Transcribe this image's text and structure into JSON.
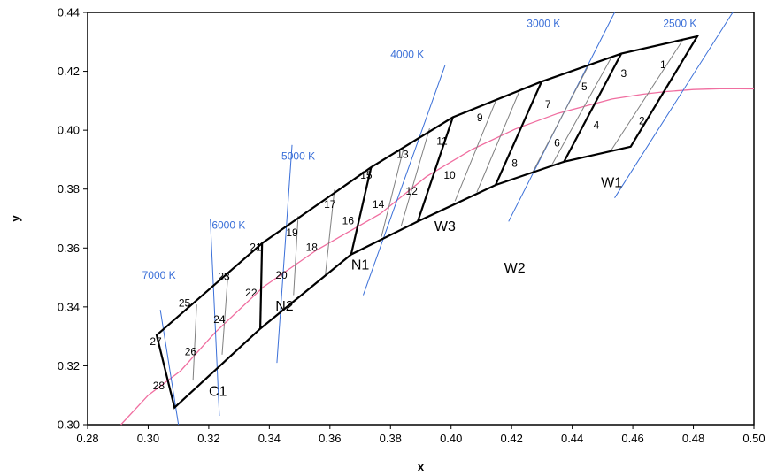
{
  "chart_data": {
    "type": "line",
    "title": "",
    "xlabel": "x",
    "ylabel": "y",
    "xlim": [
      0.28,
      0.5
    ],
    "ylim": [
      0.3,
      0.44
    ],
    "xticks": [
      "0.28",
      "0.30",
      "0.32",
      "0.34",
      "0.36",
      "0.38",
      "0.40",
      "0.42",
      "0.44",
      "0.46",
      "0.48",
      "0.50"
    ],
    "yticks": [
      "0.30",
      "0.32",
      "0.34",
      "0.36",
      "0.38",
      "0.40",
      "0.42",
      "0.44"
    ],
    "grid": false,
    "colors": {
      "planckian": "#f06ea0",
      "cct_line": "#3a6fd8",
      "cct_text": "#3a6fd8",
      "outline": "#000000",
      "bin_line": "#808080"
    },
    "planckian_locus": [
      [
        0.291,
        0.3
      ],
      [
        0.3,
        0.31
      ],
      [
        0.3107,
        0.3183
      ],
      [
        0.3221,
        0.3313
      ],
      [
        0.3379,
        0.3467
      ],
      [
        0.3555,
        0.3592
      ],
      [
        0.3766,
        0.3716
      ],
      [
        0.3918,
        0.3842
      ],
      [
        0.4068,
        0.3934
      ],
      [
        0.4212,
        0.4004
      ],
      [
        0.4352,
        0.4057
      ],
      [
        0.4532,
        0.4106
      ],
      [
        0.4633,
        0.4122
      ],
      [
        0.471,
        0.4131
      ],
      [
        0.48,
        0.4138
      ],
      [
        0.49,
        0.4141
      ],
      [
        0.5,
        0.414
      ]
    ],
    "outline_top": [
      [
        0.3028,
        0.3304
      ],
      [
        0.3376,
        0.3616
      ],
      [
        0.3736,
        0.3874
      ],
      [
        0.4006,
        0.4044
      ],
      [
        0.4299,
        0.4165
      ],
      [
        0.4562,
        0.426
      ],
      [
        0.4813,
        0.4319
      ]
    ],
    "outline_bottom": [
      [
        0.3087,
        0.3058
      ],
      [
        0.337,
        0.3326
      ],
      [
        0.367,
        0.3578
      ],
      [
        0.389,
        0.369
      ],
      [
        0.4147,
        0.3814
      ],
      [
        0.4373,
        0.3893
      ],
      [
        0.4593,
        0.3944
      ]
    ],
    "bin_lines": [
      [
        [
          0.316,
          0.3408
        ],
        [
          0.3148,
          0.315
        ]
      ],
      [
        [
          0.3263,
          0.3505
        ],
        [
          0.3244,
          0.3238
        ]
      ],
      [
        [
          0.3495,
          0.3708
        ],
        [
          0.348,
          0.344
        ]
      ],
      [
        [
          0.3615,
          0.3798
        ],
        [
          0.3585,
          0.3509
        ]
      ],
      [
        [
          0.3845,
          0.3946
        ],
        [
          0.377,
          0.3638
        ]
      ],
      [
        [
          0.3929,
          0.4006
        ],
        [
          0.3835,
          0.3674
        ]
      ],
      [
        [
          0.4147,
          0.4098
        ],
        [
          0.4013,
          0.3759
        ]
      ],
      [
        [
          0.4227,
          0.4136
        ],
        [
          0.4085,
          0.3789
        ]
      ],
      [
        [
          0.4455,
          0.4222
        ],
        [
          0.427,
          0.3858
        ]
      ],
      [
        [
          0.4528,
          0.4245
        ],
        [
          0.433,
          0.3877
        ]
      ],
      [
        [
          0.4765,
          0.4306
        ],
        [
          0.453,
          0.3934
        ]
      ]
    ],
    "group_lines": [
      [
        [
          0.3376,
          0.3616
        ],
        [
          0.337,
          0.3326
        ]
      ],
      [
        [
          0.3736,
          0.3874
        ],
        [
          0.367,
          0.3578
        ]
      ],
      [
        [
          0.4006,
          0.4044
        ],
        [
          0.389,
          0.369
        ]
      ],
      [
        [
          0.4299,
          0.4165
        ],
        [
          0.4147,
          0.3814
        ]
      ],
      [
        [
          0.4562,
          0.426
        ],
        [
          0.4373,
          0.3893
        ]
      ]
    ],
    "cct_lines": [
      {
        "label": "2500 K",
        "from": [
          0.454,
          0.377
        ],
        "to": [
          0.493,
          0.44
        ],
        "label_at": [
          0.47,
          0.435
        ]
      },
      {
        "label": "3000 K",
        "from": [
          0.419,
          0.369
        ],
        "to": [
          0.454,
          0.44
        ],
        "label_at": [
          0.425,
          0.435
        ]
      },
      {
        "label": "4000 K",
        "from": [
          0.371,
          0.344
        ],
        "to": [
          0.398,
          0.422
        ],
        "label_at": [
          0.38,
          0.4245
        ]
      },
      {
        "label": "5000 K",
        "from": [
          0.3425,
          0.321
        ],
        "to": [
          0.3475,
          0.395
        ],
        "label_at": [
          0.344,
          0.39
        ]
      },
      {
        "label": "6000 K",
        "from": [
          0.3235,
          0.303
        ],
        "to": [
          0.3205,
          0.37
        ],
        "label_at": [
          0.321,
          0.3665
        ]
      },
      {
        "label": "7000 K",
        "from": [
          0.31,
          0.3
        ],
        "to": [
          0.304,
          0.339
        ],
        "label_at": [
          0.298,
          0.3495
        ]
      }
    ],
    "bin_labels": [
      {
        "text": "1",
        "at": [
          0.47,
          0.422
        ]
      },
      {
        "text": "2",
        "at": [
          0.463,
          0.403
        ]
      },
      {
        "text": "3",
        "at": [
          0.457,
          0.419
        ]
      },
      {
        "text": "4",
        "at": [
          0.448,
          0.4015
        ]
      },
      {
        "text": "5",
        "at": [
          0.444,
          0.4145
        ]
      },
      {
        "text": "6",
        "at": [
          0.435,
          0.3955
        ]
      },
      {
        "text": "7",
        "at": [
          0.432,
          0.4085
        ]
      },
      {
        "text": "8",
        "at": [
          0.421,
          0.3885
        ]
      },
      {
        "text": "9",
        "at": [
          0.4095,
          0.404
        ]
      },
      {
        "text": "10",
        "at": [
          0.3995,
          0.3845
        ]
      },
      {
        "text": "11",
        "at": [
          0.397,
          0.396
        ]
      },
      {
        "text": "12",
        "at": [
          0.387,
          0.379
        ]
      },
      {
        "text": "13",
        "at": [
          0.384,
          0.3915
        ]
      },
      {
        "text": "14",
        "at": [
          0.376,
          0.3745
        ]
      },
      {
        "text": "15",
        "at": [
          0.372,
          0.3845
        ]
      },
      {
        "text": "16",
        "at": [
          0.366,
          0.369
        ]
      },
      {
        "text": "17",
        "at": [
          0.36,
          0.3745
        ]
      },
      {
        "text": "18",
        "at": [
          0.354,
          0.36
        ]
      },
      {
        "text": "19",
        "at": [
          0.3475,
          0.365
        ]
      },
      {
        "text": "20",
        "at": [
          0.344,
          0.3505
        ]
      },
      {
        "text": "21",
        "at": [
          0.3355,
          0.36
        ]
      },
      {
        "text": "22",
        "at": [
          0.334,
          0.3445
        ]
      },
      {
        "text": "23",
        "at": [
          0.325,
          0.35
        ]
      },
      {
        "text": "24",
        "at": [
          0.3235,
          0.3355
        ]
      },
      {
        "text": "25",
        "at": [
          0.312,
          0.341
        ]
      },
      {
        "text": "26",
        "at": [
          0.314,
          0.3245
        ]
      },
      {
        "text": "27",
        "at": [
          0.3025,
          0.328
        ]
      },
      {
        "text": "28",
        "at": [
          0.3035,
          0.313
        ]
      }
    ],
    "group_labels": [
      {
        "text": "W1",
        "at": [
          0.453,
          0.382
        ]
      },
      {
        "text": "W2",
        "at": [
          0.421,
          0.353
        ]
      },
      {
        "text": "W3",
        "at": [
          0.398,
          0.367
        ]
      },
      {
        "text": "N1",
        "at": [
          0.37,
          0.354
        ]
      },
      {
        "text": "N2",
        "at": [
          0.345,
          0.34
        ]
      },
      {
        "text": "C1",
        "at": [
          0.323,
          0.311
        ]
      }
    ]
  }
}
